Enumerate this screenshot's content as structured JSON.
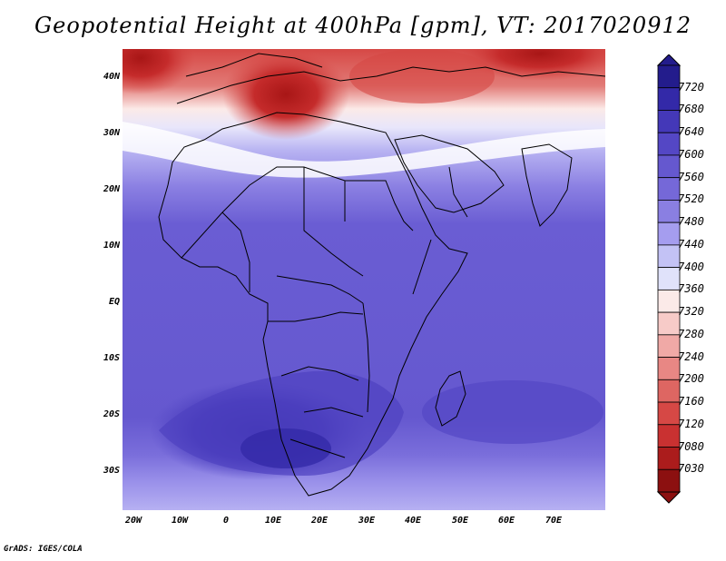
{
  "title": "Geopotential Height at 400hPa [gpm], VT: 2017020912",
  "footer": "GrADS: IGES/COLA",
  "map": {
    "projection": "latlon",
    "lon_range": [
      -22,
      80
    ],
    "lat_range": [
      -37,
      45
    ],
    "lat_ticks": [
      "40N",
      "30N",
      "20N",
      "10N",
      "EQ",
      "10S",
      "20S",
      "30S"
    ],
    "lon_ticks": [
      "20W",
      "10W",
      "0",
      "10E",
      "20E",
      "30E",
      "40E",
      "50E",
      "60E",
      "70E"
    ],
    "field": "Geopotential Height",
    "level": "400hPa",
    "units": "gpm",
    "valid_time": "2017020912"
  },
  "colorbar": {
    "levels": [
      "7720",
      "7680",
      "7640",
      "7600",
      "7560",
      "7520",
      "7480",
      "7440",
      "7400",
      "7360",
      "7320",
      "7280",
      "7240",
      "7200",
      "7160",
      "7120",
      "7080",
      "7030"
    ],
    "colors": [
      "#231c8c",
      "#3329a8",
      "#4438b8",
      "#5447c5",
      "#6558cf",
      "#7568d8",
      "#8a7fe2",
      "#a59def",
      "#c3c2f5",
      "#e0e2fa",
      "#fbeae8",
      "#f7cbc8",
      "#f0a9a6",
      "#e88784",
      "#de6662",
      "#d64845",
      "#c93131",
      "#ab1c1c",
      "#8c1010"
    ],
    "extend": "both"
  }
}
